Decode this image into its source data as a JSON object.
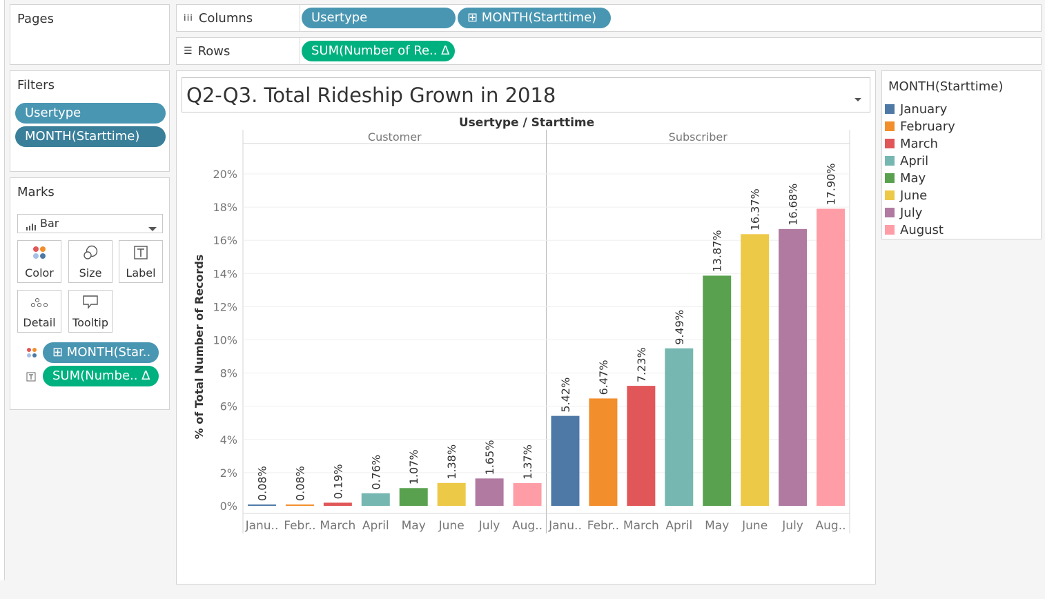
{
  "pages": {
    "title": "Pages"
  },
  "columns": {
    "label": "Columns",
    "pills": [
      {
        "text": "Usertype",
        "color": "#4996b2"
      },
      {
        "text": "⊞ MONTH(Starttime)",
        "color": "#4996b2"
      }
    ]
  },
  "rows": {
    "label": "Rows",
    "pills": [
      {
        "text": "SUM(Number of Re.. ∆",
        "color": "#00b180"
      }
    ]
  },
  "filters": {
    "title": "Filters",
    "pills": [
      "Usertype",
      "MONTH(Starttime)"
    ]
  },
  "marks": {
    "title": "Marks",
    "mark_type": "Bar",
    "buttons": [
      {
        "label": "Color",
        "icon": "color-dots-icon"
      },
      {
        "label": "Size",
        "icon": "size-circles-icon"
      },
      {
        "label": "Label",
        "icon": "label-text-icon"
      },
      {
        "label": "Detail",
        "icon": "detail-dots-icon"
      },
      {
        "label": "Tooltip",
        "icon": "tooltip-bubble-icon"
      }
    ],
    "fields": [
      {
        "text": "⊞ MONTH(Star..",
        "icon": "color-dots-icon",
        "color": "#4996b2"
      },
      {
        "text": "SUM(Numbe.. ∆",
        "icon": "label-text-icon",
        "color": "#00b180"
      }
    ]
  },
  "worksheet": {
    "title": "Q2-Q3. Total Rideship Grown in 2018",
    "header": "Usertype / Starttime"
  },
  "legend": {
    "title": "MONTH(Starttime)",
    "items": [
      {
        "name": "January",
        "color": "#4e79a7"
      },
      {
        "name": "February",
        "color": "#f28e2b"
      },
      {
        "name": "March",
        "color": "#e15759"
      },
      {
        "name": "April",
        "color": "#76b7b2"
      },
      {
        "name": "May",
        "color": "#59a14f"
      },
      {
        "name": "June",
        "color": "#edc948"
      },
      {
        "name": "July",
        "color": "#b07aa1"
      },
      {
        "name": "August",
        "color": "#ff9da7"
      }
    ]
  },
  "chart_data": {
    "type": "bar",
    "ylabel": "% of Total Number of Records",
    "yticks": [
      "0%",
      "2%",
      "4%",
      "6%",
      "8%",
      "10%",
      "12%",
      "14%",
      "16%",
      "18%",
      "20%"
    ],
    "ylim": [
      0,
      21
    ],
    "grid": true,
    "legend_position": "right",
    "groups": [
      {
        "name": "Customer",
        "categories": [
          "Janu..",
          "Febr..",
          "March",
          "April",
          "May",
          "June",
          "July",
          "Aug.."
        ],
        "values": [
          0.08,
          0.08,
          0.19,
          0.76,
          1.07,
          1.38,
          1.65,
          1.37
        ],
        "labels": [
          "0.08%",
          "0.08%",
          "0.19%",
          "0.76%",
          "1.07%",
          "1.38%",
          "1.65%",
          "1.37%"
        ]
      },
      {
        "name": "Subscriber",
        "categories": [
          "Janu..",
          "Febr..",
          "March",
          "April",
          "May",
          "June",
          "July",
          "Aug.."
        ],
        "values": [
          5.42,
          6.47,
          7.23,
          9.49,
          13.87,
          16.37,
          16.68,
          17.9
        ],
        "labels": [
          "5.42%",
          "6.47%",
          "7.23%",
          "9.49%",
          "13.87%",
          "16.37%",
          "16.68%",
          "17.90%"
        ]
      }
    ],
    "colors": [
      "#4e79a7",
      "#f28e2b",
      "#e15759",
      "#76b7b2",
      "#59a14f",
      "#edc948",
      "#b07aa1",
      "#ff9da7"
    ]
  }
}
